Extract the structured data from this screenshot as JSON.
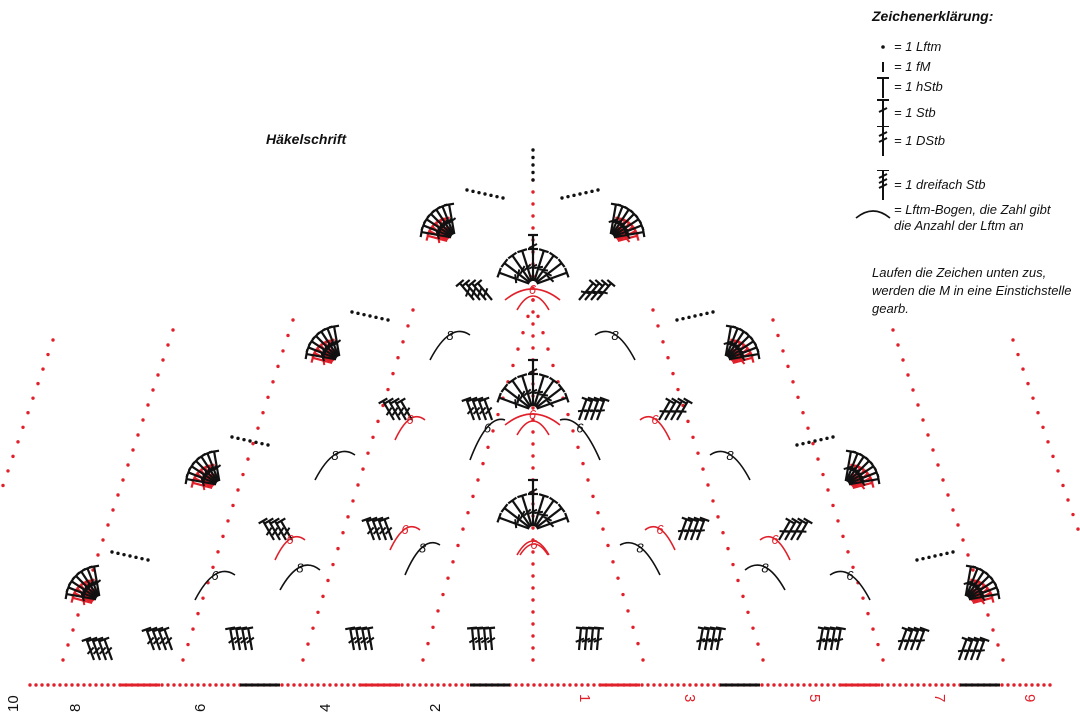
{
  "title": "Häkelschrift",
  "legend": {
    "title": "Zeichenerklärung:",
    "items": [
      {
        "symbol": "chain-stitch-icon",
        "label": "= 1 Lftm"
      },
      {
        "symbol": "slip-stitch-icon",
        "label": "= 1 fM"
      },
      {
        "symbol": "half-double-crochet-icon",
        "label": "= 1 hStb"
      },
      {
        "symbol": "double-crochet-icon",
        "label": "= 1 Stb"
      },
      {
        "symbol": "treble-crochet-icon",
        "label": "= 1 DStb"
      },
      {
        "symbol": "triple-treble-icon",
        "label": "= 1 dreifach Stb"
      },
      {
        "symbol": "chain-arch-icon",
        "label": "= Lftm-Bogen, die Zahl gibt die Anzahl der Lftm an"
      }
    ]
  },
  "note": "Laufen die Zeichen unten zus, werden die M in eine Einstichstelle gearb.",
  "colors": {
    "black": "#111111",
    "red": "#e0202a"
  },
  "row_numbers": {
    "left": [
      "10",
      "8",
      "6",
      "4",
      "2"
    ],
    "right": [
      "1",
      "3",
      "5",
      "7",
      "9"
    ]
  },
  "chain_counts": {
    "black": [
      "8",
      "8",
      "8",
      "8",
      "6",
      "6",
      "6",
      "6",
      "8",
      "8",
      "8",
      "8"
    ],
    "red": [
      "6",
      "6",
      "6",
      "6",
      "6",
      "6",
      "6",
      "6",
      "6"
    ]
  }
}
